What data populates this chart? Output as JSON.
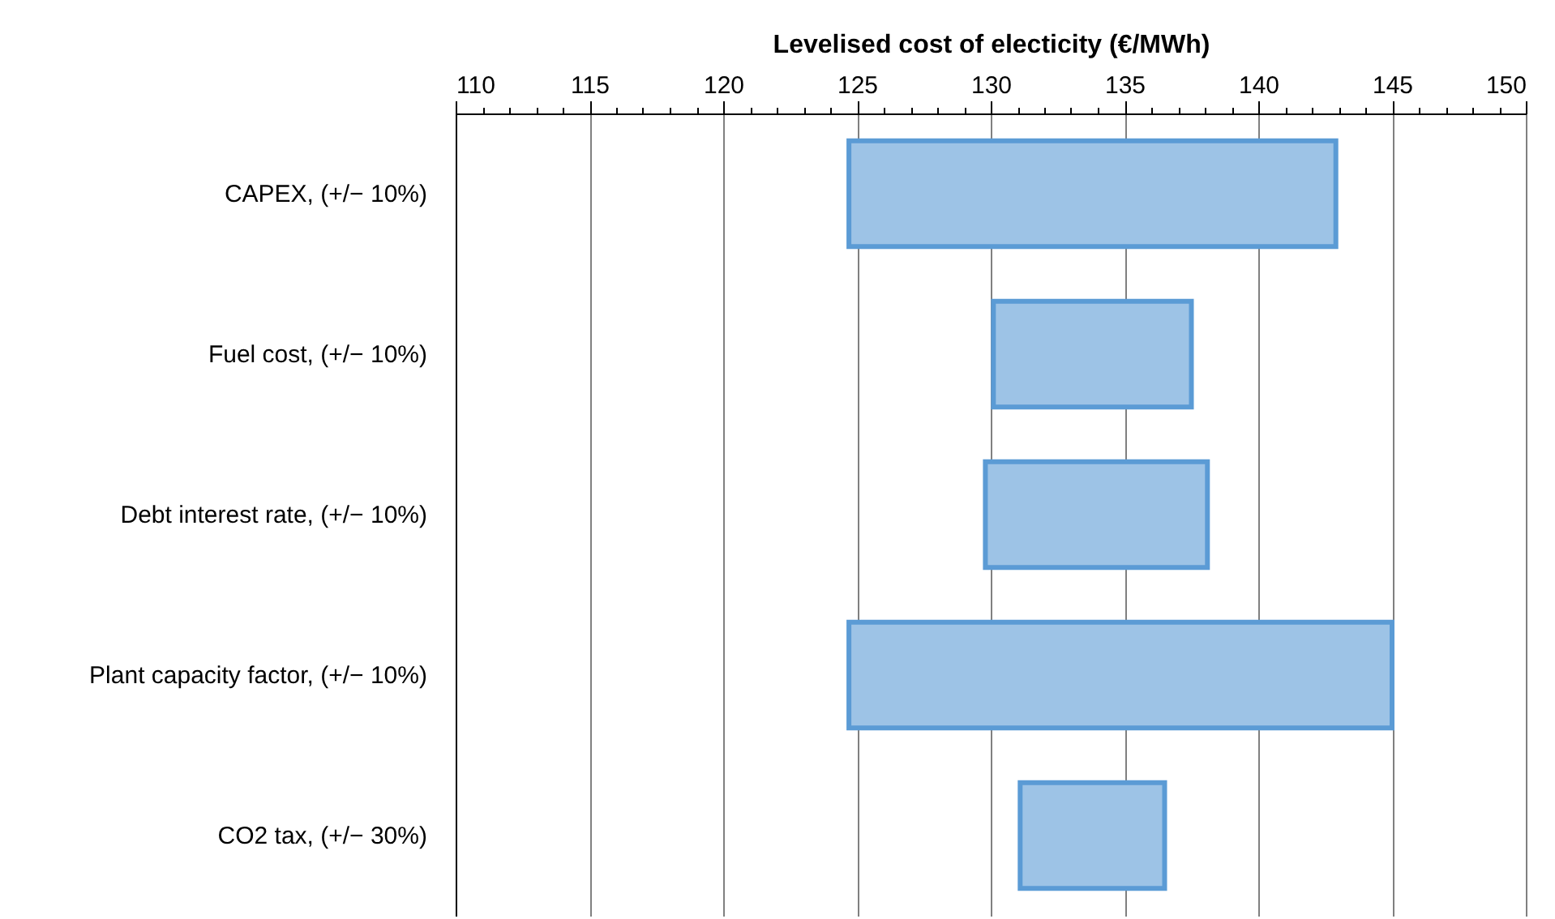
{
  "chart_data": {
    "type": "bar",
    "orientation": "horizontal",
    "xlabel": "Levelised cost of electicity (€/MWh)",
    "categories": [
      "CAPEX, (+/− 10%)",
      "Fuel cost, (+/− 10%)",
      "Debt interest rate, (+/− 10%)",
      "Plant capacity factor, (+/− 10%)",
      "CO2 tax, (+/− 30%)"
    ],
    "base": [
      124.7,
      130.1,
      129.8,
      124.7,
      131.1
    ],
    "values": [
      18.2,
      7.4,
      8.3,
      20.3,
      5.4
    ],
    "color": "#9dc3e6",
    "xlim": [
      110,
      150
    ],
    "xticks": [
      110,
      {
        "value": 111,
        "label": null
      },
      {
        "value": 112,
        "label": null
      },
      {
        "value": 113,
        "label": null
      },
      {
        "value": 114,
        "label": null
      },
      115,
      {
        "value": 116,
        "label": null
      },
      {
        "value": 117,
        "label": null
      },
      {
        "value": 118,
        "label": null
      },
      {
        "value": 119,
        "label": null
      },
      120,
      {
        "value": 121,
        "label": null
      },
      {
        "value": 122,
        "label": null
      },
      {
        "value": 123,
        "label": null
      },
      {
        "value": 124,
        "label": null
      },
      125,
      {
        "value": 126,
        "label": null
      },
      {
        "value": 127,
        "label": null
      },
      {
        "value": 128,
        "label": null
      },
      {
        "value": 129,
        "label": null
      },
      130,
      {
        "value": 131,
        "label": null
      },
      {
        "value": 132,
        "label": null
      },
      {
        "value": 133,
        "label": null
      },
      {
        "value": 134,
        "label": null
      },
      135,
      {
        "value": 136,
        "label": null
      },
      {
        "value": 137,
        "label": null
      },
      {
        "value": 138,
        "label": null
      },
      {
        "value": 139,
        "label": null
      },
      140,
      {
        "value": 141,
        "label": null
      },
      {
        "value": 142,
        "label": null
      },
      {
        "value": 143,
        "label": null
      },
      {
        "value": 144,
        "label": null
      },
      145,
      {
        "value": 146,
        "label": null
      },
      {
        "value": 147,
        "label": null
      },
      {
        "value": 148,
        "label": null
      },
      {
        "value": 149,
        "label": null
      },
      150
    ],
    "grid": "x"
  }
}
